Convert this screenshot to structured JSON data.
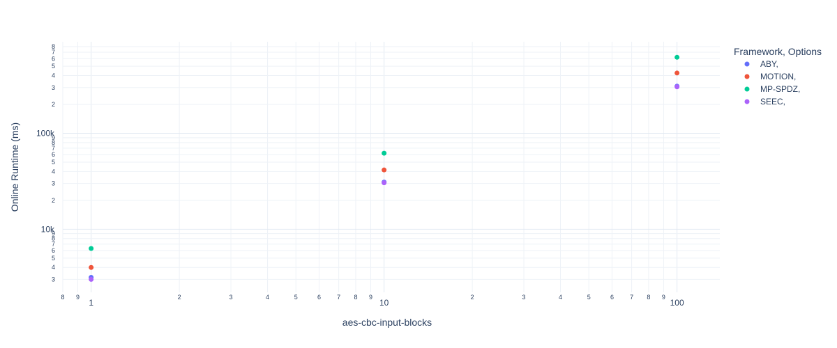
{
  "chart_data": {
    "type": "scatter",
    "x_scale": "log",
    "y_scale": "log",
    "xlabel": "aes-cbc-input-blocks",
    "ylabel": "Online Runtime (ms)",
    "xlim": [
      0.8,
      140
    ],
    "ylim": [
      2200,
      900000
    ],
    "grid": true,
    "x_major_ticks": [
      {
        "value": 1,
        "label": "1"
      },
      {
        "value": 10,
        "label": "10"
      },
      {
        "value": 100,
        "label": "100"
      }
    ],
    "x_minor_ticks": [
      {
        "value": 0.8,
        "label": "8"
      },
      {
        "value": 0.9,
        "label": "9"
      },
      {
        "value": 2,
        "label": "2"
      },
      {
        "value": 3,
        "label": "3"
      },
      {
        "value": 4,
        "label": "4"
      },
      {
        "value": 5,
        "label": "5"
      },
      {
        "value": 6,
        "label": "6"
      },
      {
        "value": 7,
        "label": "7"
      },
      {
        "value": 8,
        "label": "8"
      },
      {
        "value": 9,
        "label": "9"
      },
      {
        "value": 20,
        "label": "2"
      },
      {
        "value": 30,
        "label": "3"
      },
      {
        "value": 40,
        "label": "4"
      },
      {
        "value": 50,
        "label": "5"
      },
      {
        "value": 60,
        "label": "6"
      },
      {
        "value": 70,
        "label": "7"
      },
      {
        "value": 80,
        "label": "8"
      },
      {
        "value": 90,
        "label": "9"
      }
    ],
    "y_major_ticks": [
      {
        "value": 10000,
        "label": "10k"
      },
      {
        "value": 100000,
        "label": "100k"
      }
    ],
    "y_minor_ticks": [
      {
        "value": 3000,
        "label": "3"
      },
      {
        "value": 4000,
        "label": "4"
      },
      {
        "value": 5000,
        "label": "5"
      },
      {
        "value": 6000,
        "label": "6"
      },
      {
        "value": 7000,
        "label": "7"
      },
      {
        "value": 8000,
        "label": "8"
      },
      {
        "value": 9000,
        "label": "9"
      },
      {
        "value": 20000,
        "label": "2"
      },
      {
        "value": 30000,
        "label": "3"
      },
      {
        "value": 40000,
        "label": "4"
      },
      {
        "value": 50000,
        "label": "5"
      },
      {
        "value": 60000,
        "label": "6"
      },
      {
        "value": 70000,
        "label": "7"
      },
      {
        "value": 80000,
        "label": "8"
      },
      {
        "value": 90000,
        "label": "9"
      },
      {
        "value": 200000,
        "label": "2"
      },
      {
        "value": 300000,
        "label": "3"
      },
      {
        "value": 400000,
        "label": "4"
      },
      {
        "value": 500000,
        "label": "5"
      },
      {
        "value": 600000,
        "label": "6"
      },
      {
        "value": 700000,
        "label": "7"
      },
      {
        "value": 800000,
        "label": "8"
      }
    ],
    "legend": {
      "title": "Framework, Options",
      "placement": "right"
    },
    "series": [
      {
        "name": "ABY,",
        "color": "#636efa",
        "points": [
          {
            "x": 1,
            "y": 3150
          },
          {
            "x": 10,
            "y": 31000
          },
          {
            "x": 100,
            "y": 310000
          }
        ]
      },
      {
        "name": "MOTION,",
        "color": "#ef553b",
        "points": [
          {
            "x": 1,
            "y": 4000
          },
          {
            "x": 10,
            "y": 41500
          },
          {
            "x": 100,
            "y": 425000
          }
        ]
      },
      {
        "name": "MP-SPDZ,",
        "color": "#00cc96",
        "points": [
          {
            "x": 1,
            "y": 6300
          },
          {
            "x": 10,
            "y": 62000
          },
          {
            "x": 100,
            "y": 620000
          }
        ]
      },
      {
        "name": "SEEC,",
        "color": "#ab63fa",
        "points": [
          {
            "x": 1,
            "y": 3000
          },
          {
            "x": 10,
            "y": 30500
          },
          {
            "x": 100,
            "y": 305000
          }
        ]
      }
    ]
  }
}
